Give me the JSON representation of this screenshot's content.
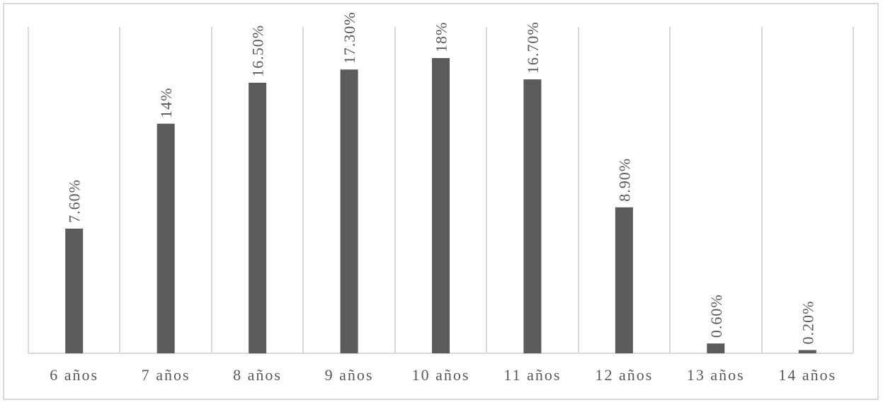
{
  "chart_data": {
    "type": "bar",
    "categories": [
      "6 años",
      "7 años",
      "8 años",
      "9 años",
      "10 años",
      "11 años",
      "12 años",
      "13 años",
      "14 años"
    ],
    "values": [
      7.6,
      14,
      16.5,
      17.3,
      18,
      16.7,
      8.9,
      0.6,
      0.2
    ],
    "data_labels": [
      "7.60%",
      "14%",
      "16.50%",
      "17.30%",
      "18%",
      "16.70%",
      "8.90%",
      "0.60%",
      "0.20%"
    ],
    "title": "",
    "xlabel": "",
    "ylabel": "",
    "ylim": [
      0,
      18.7
    ],
    "grid": "vertical category separators",
    "legend": "none",
    "bar_color": "#5b5b5b",
    "grid_color": "#d9d9d9",
    "label_color": "#595959"
  }
}
